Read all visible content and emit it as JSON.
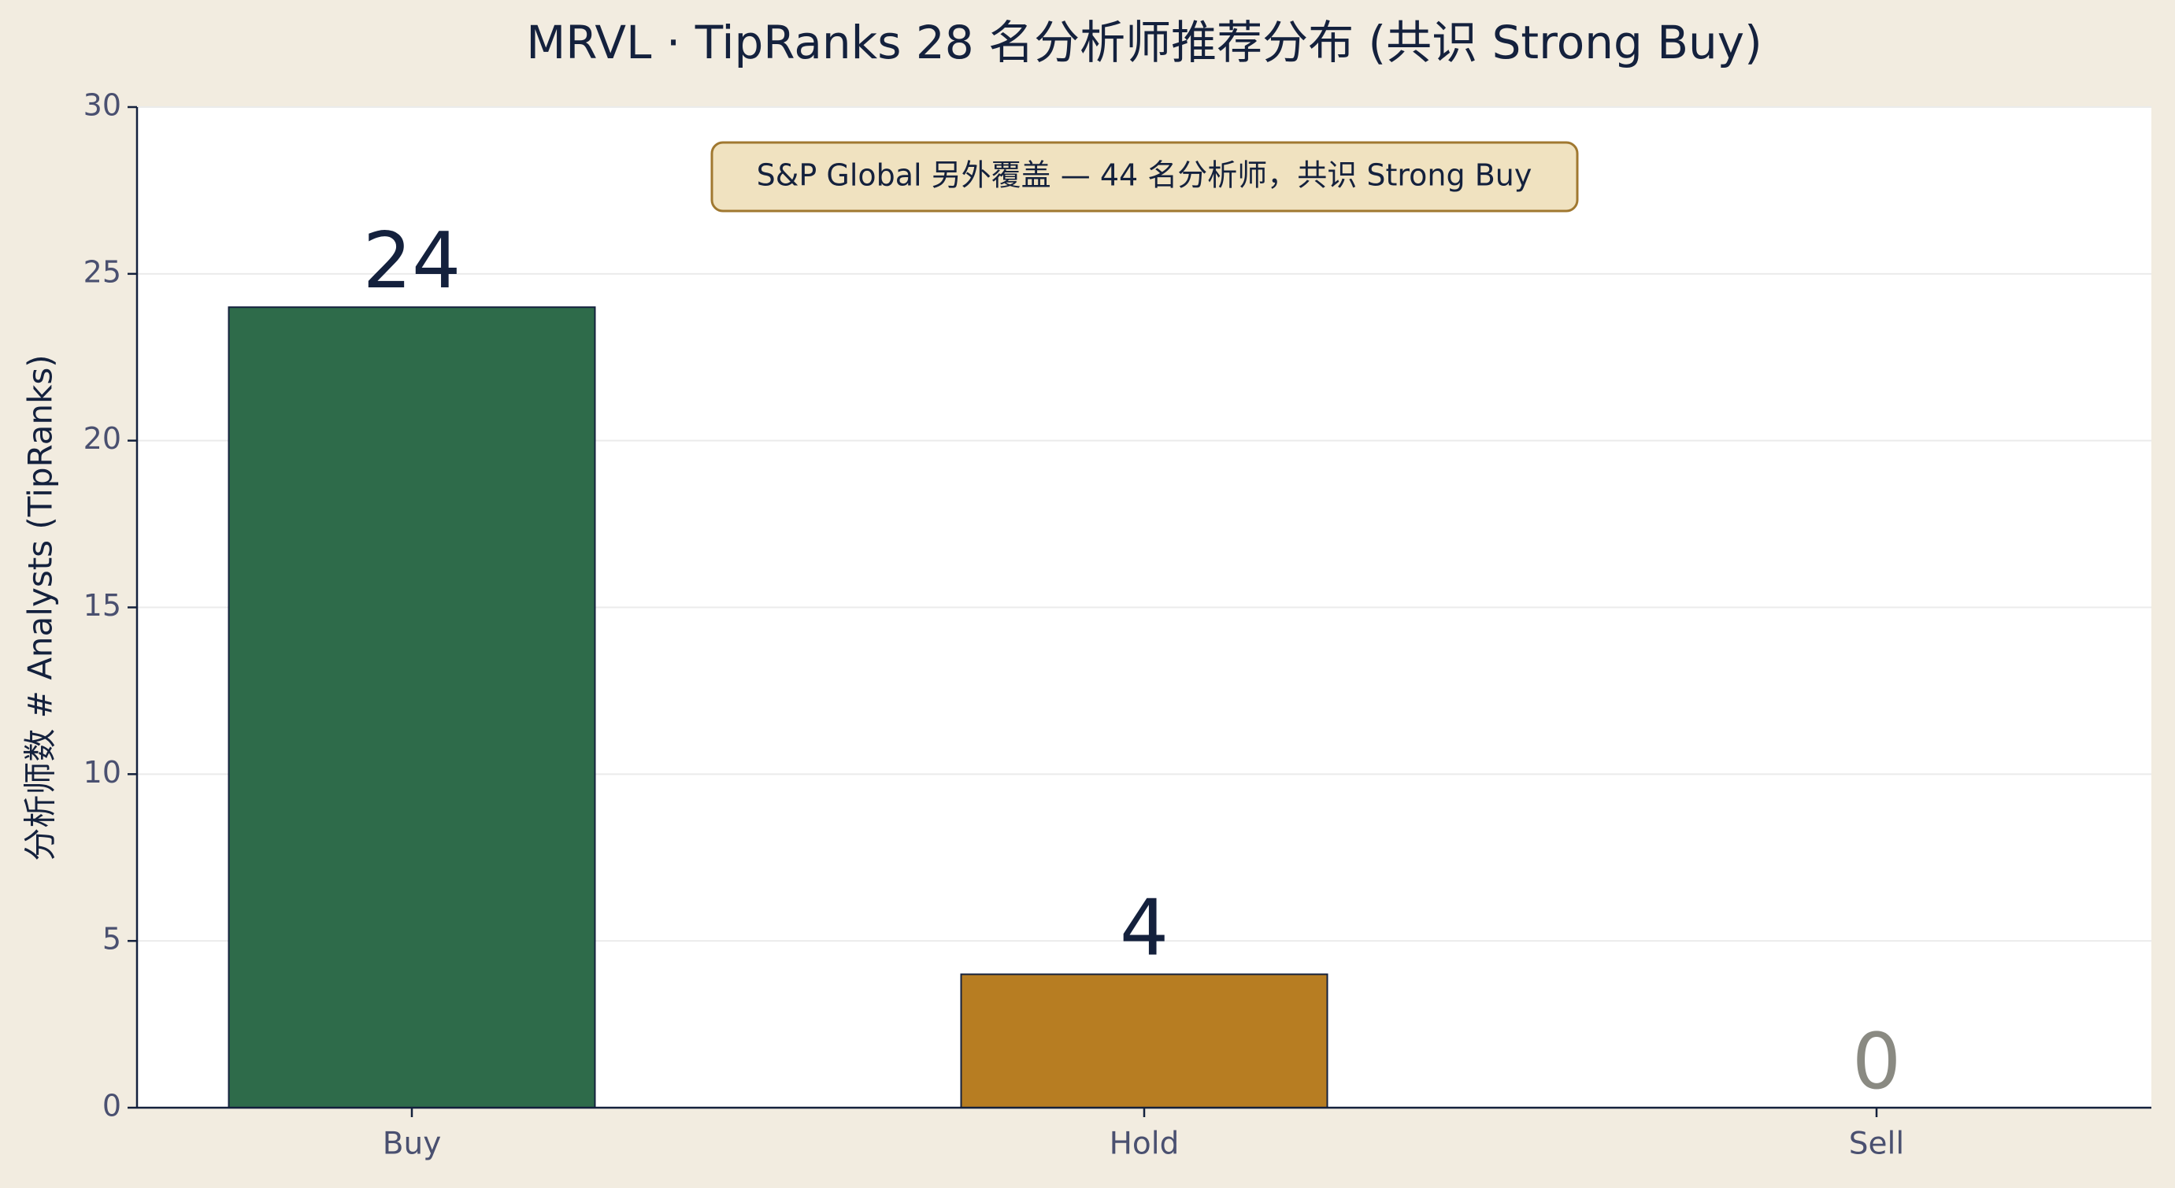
{
  "chart_data": {
    "type": "bar",
    "title": "MRVL · TipRanks 28 名分析师推荐分布 (共识 Strong Buy)",
    "y_label": "分析师数 # Analysts (TipRanks)",
    "annotation": "S&P Global 另外覆盖 — 44 名分析师，共识 Strong Buy",
    "categories": [
      "Buy",
      "Hold",
      "Sell"
    ],
    "values": [
      24,
      4,
      0
    ],
    "colors": [
      "#2e6b4a",
      "#b77d22",
      "#8a8a82"
    ],
    "label_colors": [
      "#14213d",
      "#14213d",
      "#8a8a82"
    ],
    "ylim": [
      0,
      30
    ],
    "yticks": [
      0,
      5,
      10,
      15,
      20,
      25,
      30
    ],
    "grid": true
  }
}
